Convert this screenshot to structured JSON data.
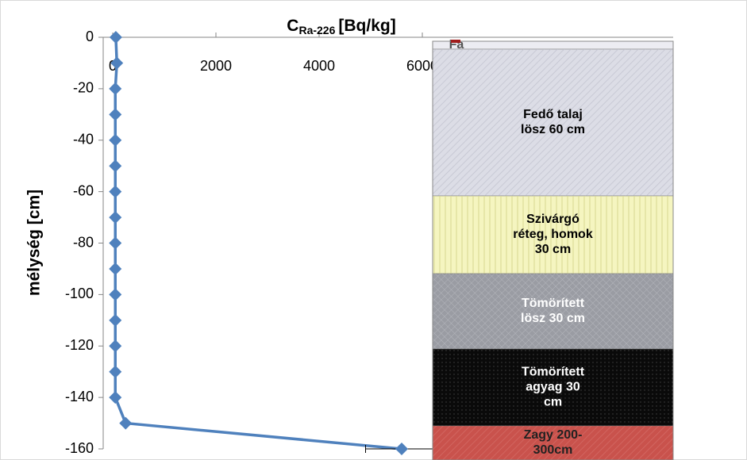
{
  "chart_data": {
    "type": "line",
    "title": {
      "main": "C",
      "sub": "Ra-226",
      "unit": "[Bq/kg]"
    },
    "y_label": "mélység [cm]",
    "x": [
      0,
      -10,
      -20,
      -30,
      -40,
      -50,
      -60,
      -70,
      -80,
      -90,
      -100,
      -110,
      -120,
      -130,
      -140,
      -150,
      -160
    ],
    "series": [
      {
        "color": "#4f81bd",
        "values": [
          60,
          80,
          50,
          50,
          50,
          50,
          50,
          50,
          50,
          50,
          50,
          50,
          50,
          50,
          50,
          250,
          5600
        ],
        "errors": [
          null,
          null,
          null,
          null,
          null,
          null,
          null,
          null,
          null,
          null,
          null,
          null,
          null,
          null,
          null,
          null,
          700
        ]
      }
    ],
    "xlim": [
      0,
      10000
    ],
    "xticks": [
      0,
      2000,
      4000,
      6000
    ],
    "ylim": [
      -160,
      0
    ],
    "yticks": [
      0,
      -20,
      -40,
      -60,
      -80,
      -100,
      -120,
      -140,
      -160
    ],
    "profile": [
      {
        "lines": [
          "Fa"
        ],
        "fill": "#ececf2",
        "text_color": "#555"
      },
      {
        "lines": [
          "Fedő talaj",
          "lösz 60 cm"
        ],
        "fill": "#dcdde6",
        "text_color": "#000"
      },
      {
        "lines": [
          "Szivárgó",
          "réteg, homok",
          "30 cm"
        ],
        "fill": "#f5f5c0",
        "text_color": "#000"
      },
      {
        "lines": [
          "Tömörített",
          "lösz 30 cm"
        ],
        "fill": "#9a9ca3",
        "text_color": "#fff"
      },
      {
        "lines": [
          "Tömörített",
          "agyag 30",
          "cm"
        ],
        "fill": "#0a0a0a",
        "text_color": "#fff"
      },
      {
        "lines": [
          "Zagy 200-",
          "300cm"
        ],
        "fill": "#c9524c",
        "text_color": "#222"
      }
    ]
  }
}
